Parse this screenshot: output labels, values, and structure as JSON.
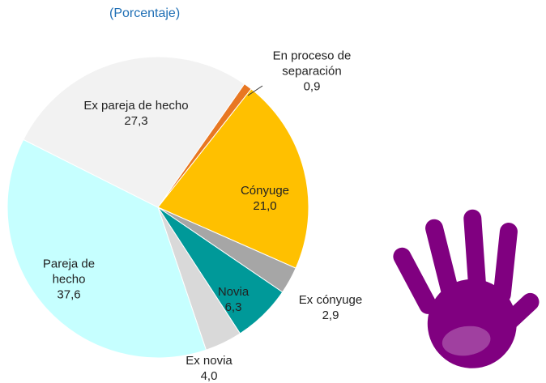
{
  "chart_data": {
    "type": "pie",
    "subtitle": "(Porcentaje)",
    "categories": [
      "En proceso de separación",
      "Cónyuge",
      "Ex cónyuge",
      "Novia",
      "Ex novia",
      "Pareja de hecho",
      "Ex pareja de hecho"
    ],
    "values": [
      0.9,
      21.0,
      2.9,
      6.3,
      4.0,
      37.6,
      27.3
    ],
    "value_labels": [
      "0,9",
      "21,0",
      "2,9",
      "6,3",
      "4,0",
      "37,6",
      "27,3"
    ],
    "colors": [
      "#e87722",
      "#ffc000",
      "#a6a6a6",
      "#009999",
      "#d9d9d9",
      "#c6ffff",
      "#f2f2f2"
    ]
  }
}
